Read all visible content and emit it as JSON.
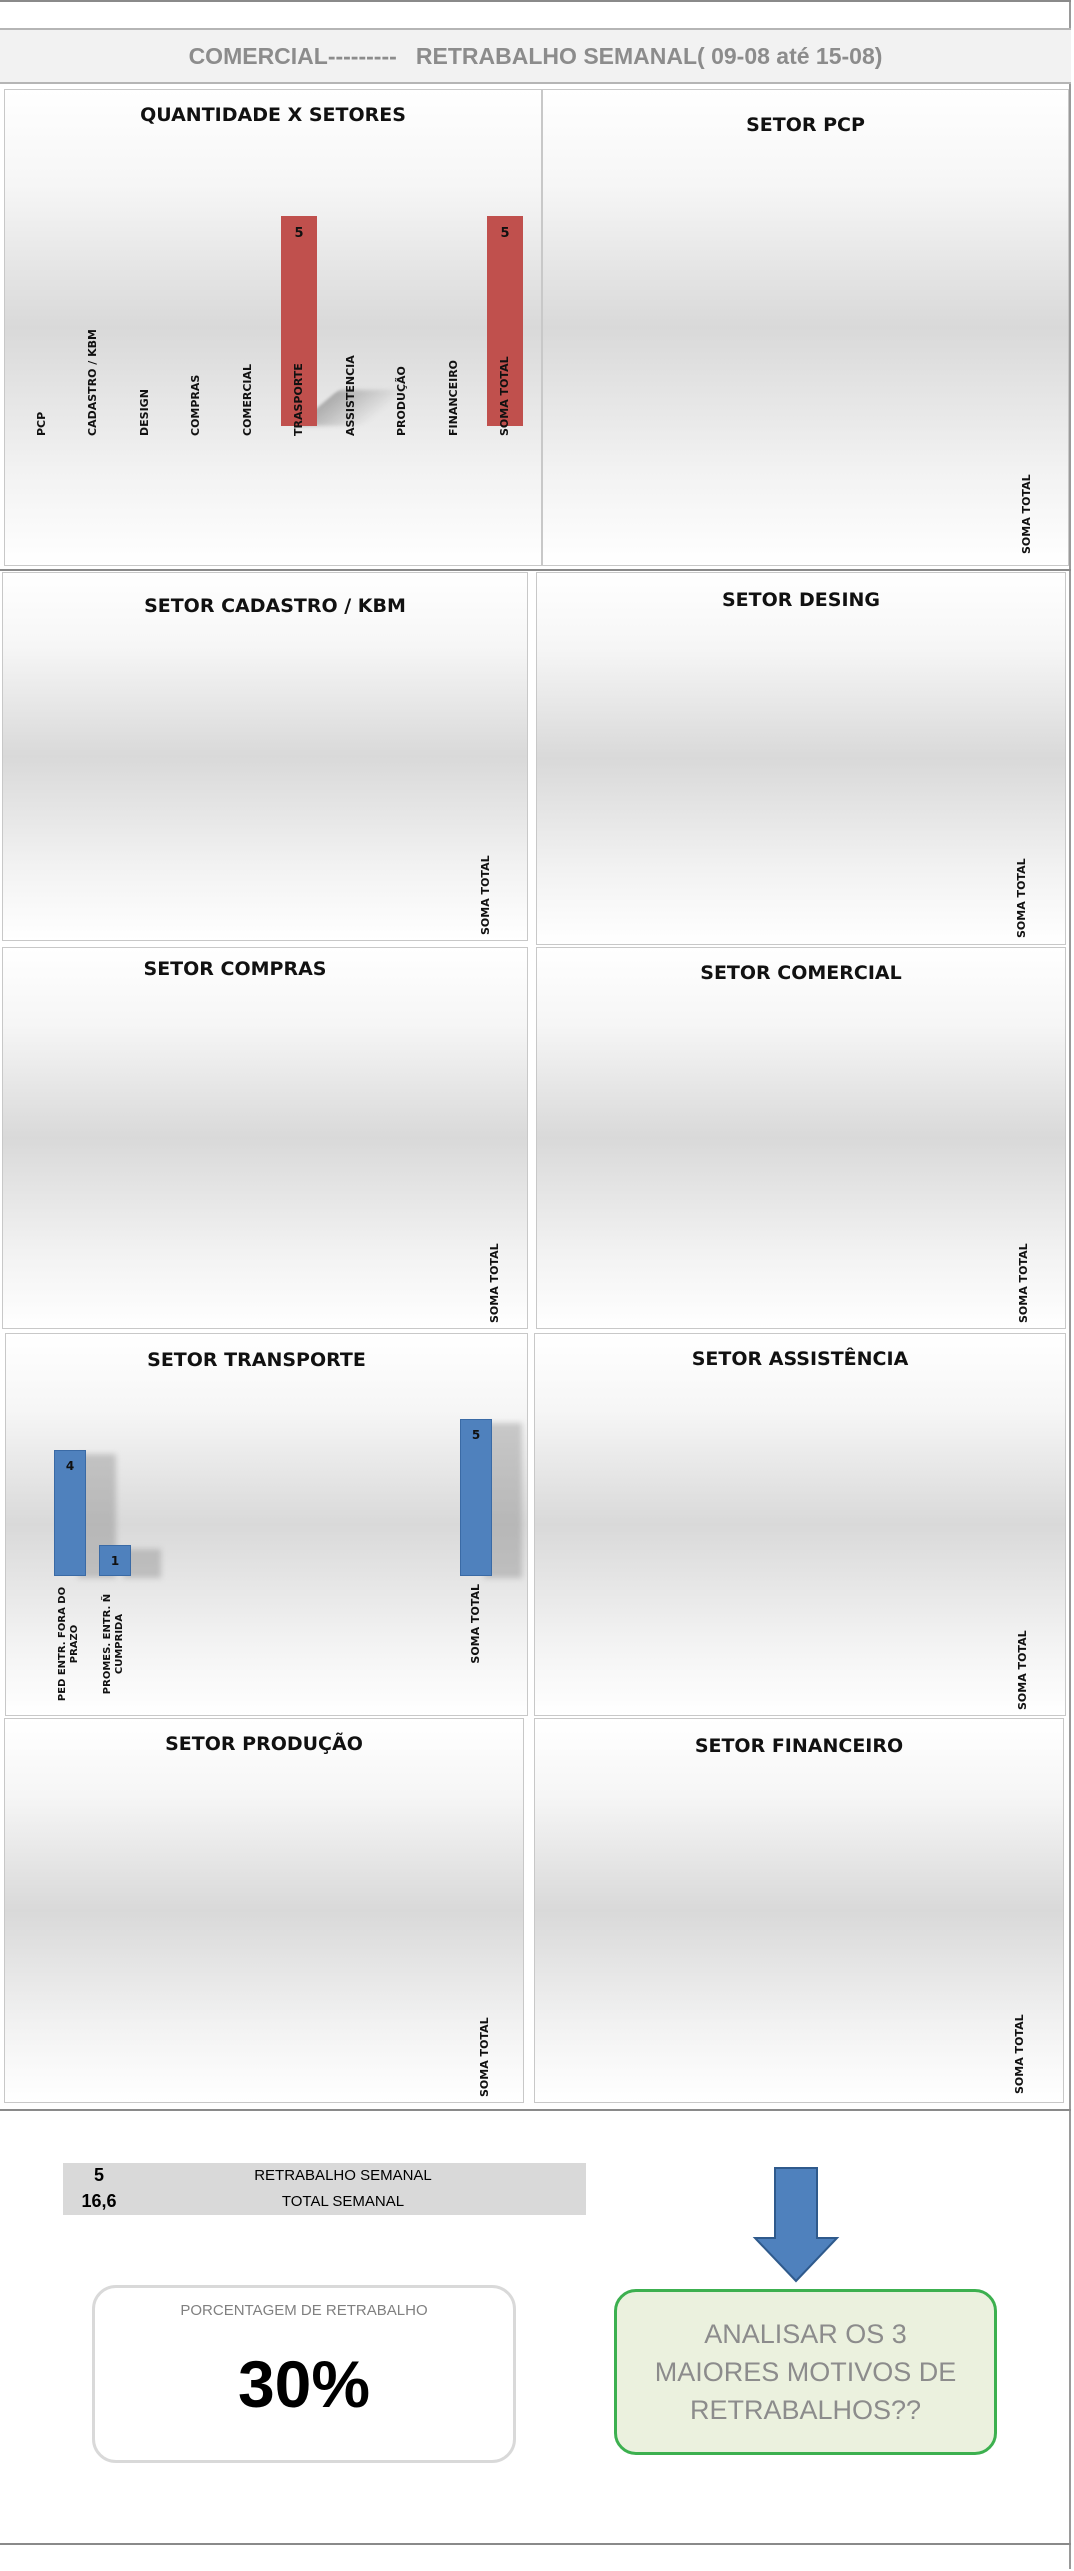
{
  "header": {
    "title": "COMERCIAL---------   RETRABALHO SEMANAL( 09-08 até 15-08)"
  },
  "colors": {
    "red_bar": "#c0504d",
    "blue_bar": "#4f81bd",
    "green_border": "#3cb04f",
    "green_fill": "#ebf1de"
  },
  "chart_data": [
    {
      "type": "bar",
      "title": "QUANTIDADE X SETORES",
      "categories": [
        "PCP",
        "CADASTRO / KBM",
        "DESIGN",
        "COMPRAS",
        "COMERCIAL",
        "TRASPORTE",
        "ASSISTENCIA",
        "PRODUÇÃO",
        "FINANCEIRO",
        "SOMA TOTAL"
      ],
      "values": [
        0,
        0,
        0,
        0,
        0,
        5,
        0,
        0,
        0,
        5
      ],
      "color": "#c0504d"
    },
    {
      "type": "bar",
      "title": "SETOR PCP",
      "categories": [
        "SOMA TOTAL"
      ],
      "values": [
        0
      ]
    },
    {
      "type": "bar",
      "title": "SETOR CADASTRO  / KBM",
      "categories": [
        "SOMA TOTAL"
      ],
      "values": [
        0
      ]
    },
    {
      "type": "bar",
      "title": "SETOR DESING",
      "categories": [
        "SOMA TOTAL"
      ],
      "values": [
        0
      ]
    },
    {
      "type": "bar",
      "title": "SETOR COMPRAS",
      "categories": [
        "SOMA TOTAL"
      ],
      "values": [
        0
      ]
    },
    {
      "type": "bar",
      "title": "SETOR COMERCIAL",
      "categories": [
        "SOMA TOTAL"
      ],
      "values": [
        0
      ]
    },
    {
      "type": "bar",
      "title": "SETOR TRANSPORTE",
      "categories": [
        "PED ENTR. FORA DO PRAZO",
        "PROMES. ENTR. Ñ CUMPRIDA",
        "SOMA TOTAL"
      ],
      "values": [
        4,
        1,
        5
      ],
      "color": "#4f81bd"
    },
    {
      "type": "bar",
      "title": "SETOR ASSISTÊNCIA",
      "categories": [
        "SOMA TOTAL"
      ],
      "values": [
        0
      ]
    },
    {
      "type": "bar",
      "title": "SETOR PRODUÇÃO",
      "categories": [
        "SOMA TOTAL"
      ],
      "values": [
        0
      ]
    },
    {
      "type": "bar",
      "title": "SETOR FINANCEIRO",
      "categories": [
        "SOMA TOTAL"
      ],
      "values": [
        0
      ]
    }
  ],
  "summary": {
    "rows": [
      {
        "value": "5",
        "label": "RETRABALHO SEMANAL"
      },
      {
        "value": "16,6",
        "label": "TOTAL  SEMANAL"
      }
    ],
    "percent_caption": "PORCENTAGEM DE RETRABALHO",
    "percent_value": "30%",
    "question": "ANALISAR OS 3 MAIORES MOTIVOS DE RETRABALHOS??"
  },
  "icons": {
    "arrow": "down-arrow-icon"
  }
}
